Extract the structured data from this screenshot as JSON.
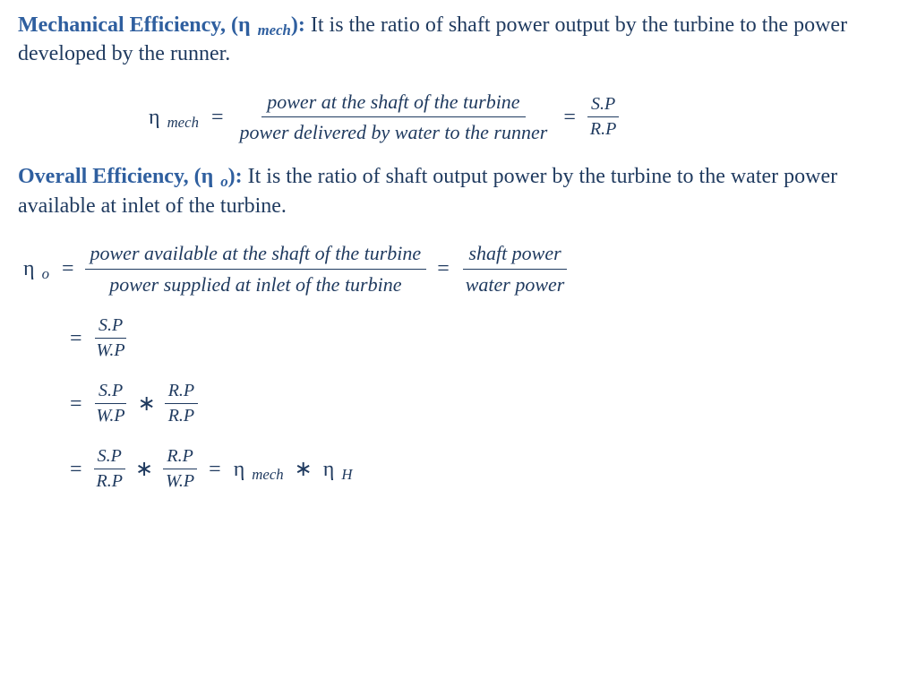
{
  "section1": {
    "heading": "Mechanical Efficiency, (",
    "symbol": "η ",
    "subscript": "mech",
    "heading_close": "): ",
    "definition": "It is the ratio of shaft power output by the turbine to the power developed by the runner."
  },
  "eq1": {
    "lhs_sym": "η ",
    "lhs_sub": "mech",
    "eq": "=",
    "frac1_num": "power at the shaft of the turbine",
    "frac1_den": "power delivered by water to the runner",
    "eq2": "=",
    "frac2_num": "S.P",
    "frac2_den": "R.P"
  },
  "section2": {
    "heading": "Overall Efficiency, (",
    "symbol": "η ",
    "subscript": "o",
    "heading_close": "): ",
    "definition": "It is the ratio of shaft output power by the turbine to the water power available at inlet of the turbine."
  },
  "eq2row": {
    "lhs_sym": "η ",
    "lhs_sub": "o",
    "eq": "=",
    "frac1_num": "power available at the shaft of the turbine",
    "frac1_den": "power supplied at inlet of the turbine",
    "eq2": "=",
    "frac2_num": "shaft power",
    "frac2_den": "water  power"
  },
  "eq3": {
    "eq": "=",
    "num": "S.P",
    "den": "W.P"
  },
  "eq4": {
    "eq": "=",
    "f1_num": "S.P",
    "f1_den": "W.P",
    "star": "∗",
    "f2_num": "R.P",
    "f2_den": "R.P"
  },
  "eq5": {
    "eq": "=",
    "f1_num": "S.P",
    "f1_den": "R.P",
    "star": "∗",
    "f2_num": "R.P",
    "f2_den": "W.P",
    "eq2": "=",
    "rhs1_sym": "η ",
    "rhs1_sub": "mech",
    "star2": "∗",
    "rhs2_sym": "η ",
    "rhs2_sub": "H"
  }
}
